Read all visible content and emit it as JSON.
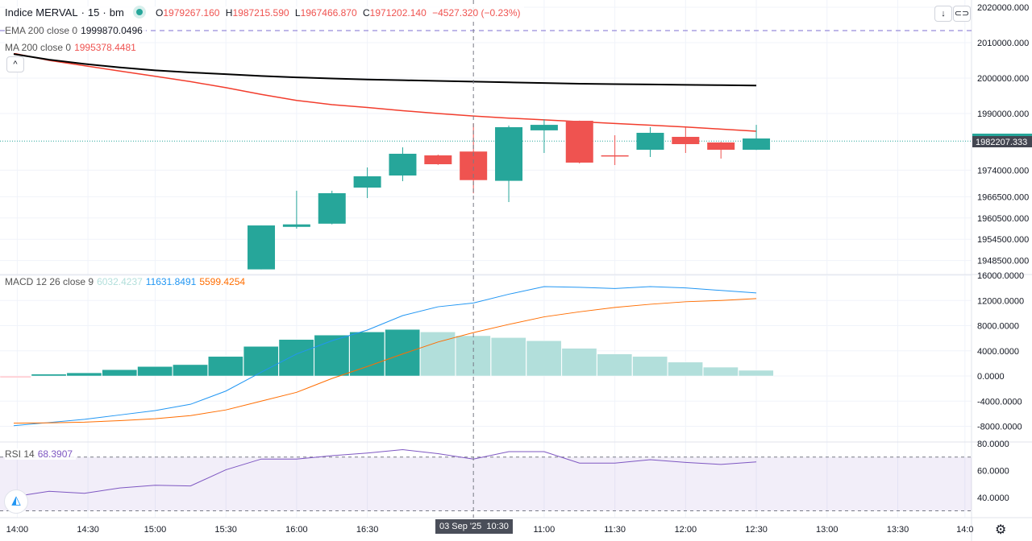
{
  "header": {
    "symbol": "Indice MERVAL",
    "interval": "15",
    "exchange": "bm",
    "open_label": "O",
    "open": "1979267.160",
    "high_label": "H",
    "high": "1987215.590",
    "low_label": "L",
    "low": "1967466.870",
    "close_label": "C",
    "close": "1971202.140",
    "change": "−4527.320 (−0.23%)"
  },
  "indicators": {
    "ema": {
      "label": "EMA 200 close 0",
      "value": "1999870.0496"
    },
    "ma": {
      "label": "MA 200 close 0",
      "value": "1995378.4481"
    },
    "macd": {
      "label": "MACD 12 26 close 9",
      "hist": "6032.4237",
      "macd": "11631.8491",
      "signal": "5599.4254"
    },
    "rsi": {
      "label": "RSI 14",
      "value": "68.3907"
    }
  },
  "buttons": {
    "collapse": "^",
    "scroll_down": "↓",
    "auto_scale": "⊂⊃"
  },
  "colors": {
    "up": "#26a69a",
    "down": "#ef5350",
    "ema": "#000000",
    "ma": "#f23d2d",
    "macd": "#2196f3",
    "signal": "#ff6d00",
    "hist_up_strong": "#26a69a",
    "hist_up_weak": "#b2dfdb",
    "rsi": "#7e57c2"
  },
  "crosshair": {
    "date_label": "03 Sep '25",
    "time_label": "10:30"
  },
  "last_price_label": "1982207.333",
  "chart_data": [
    {
      "type": "candlestick",
      "title": "Indice MERVAL · 15 · bm",
      "price_axis_ticks": [
        "2020000.000",
        "2010000.000",
        "2000000.000",
        "1990000.000",
        "1974000.000",
        "1966500.000",
        "1960500.000",
        "1954500.000",
        "1948500.000"
      ],
      "price_axis_values": [
        2020000,
        2010000,
        2000000,
        1990000,
        1974000,
        1966500,
        1960500,
        1954500,
        1948500
      ],
      "last_price": 1982207.333,
      "ema_ref_line": 2013400,
      "candles": [
        {
          "o": 1946000,
          "h": 1958400,
          "l": 1946000,
          "c": 1958400
        },
        {
          "o": 1958000,
          "h": 1968200,
          "l": 1957500,
          "c": 1958700
        },
        {
          "o": 1958900,
          "h": 1968200,
          "l": 1958700,
          "c": 1967500
        },
        {
          "o": 1969090,
          "h": 1974770,
          "l": 1966140,
          "c": 1972270
        },
        {
          "o": 1972500,
          "h": 1980450,
          "l": 1970900,
          "c": 1978640
        },
        {
          "o": 1978180,
          "h": 1978400,
          "l": 1975500,
          "c": 1975680
        },
        {
          "o": 1979267.16,
          "h": 1987215.59,
          "l": 1967466.87,
          "c": 1971202.14
        },
        {
          "o": 1971000,
          "h": 1986600,
          "l": 1965000,
          "c": 1986140
        },
        {
          "o": 1985250,
          "h": 1988400,
          "l": 1978860,
          "c": 1986800
        },
        {
          "o": 1987950,
          "h": 1988000,
          "l": 1975900,
          "c": 1976140
        },
        {
          "o": 1978200,
          "h": 1983860,
          "l": 1975450,
          "c": 1977950
        },
        {
          "o": 1979770,
          "h": 1986140,
          "l": 1977730,
          "c": 1984550
        },
        {
          "o": 1983410,
          "h": 1986140,
          "l": 1978860,
          "c": 1981360
        },
        {
          "o": 1981820,
          "h": 1982000,
          "l": 1977270,
          "c": 1979770
        },
        {
          "o": 1979770,
          "h": 1986800,
          "l": 1979700,
          "c": 1982950
        }
      ],
      "ma": [
        2007000,
        2005000,
        2003500,
        2002000,
        2000500,
        1999000,
        1997300,
        1995400,
        1993700,
        1992500,
        1991700,
        1990800,
        1990000,
        1989300,
        1988700,
        1988200,
        1987700,
        1987200,
        1986700,
        1986200,
        1985600,
        1985000
      ],
      "ema": [
        2006800,
        2005200,
        2004000,
        2003000,
        2002200,
        2001600,
        2001100,
        2000600,
        2000200,
        1999900,
        1999600,
        1999400,
        1999200,
        1999000,
        1998800,
        1998600,
        1998400,
        1998300,
        1998200,
        1998100,
        1998000,
        1997900
      ]
    },
    {
      "type": "bar+line",
      "title": "MACD 12 26 close 9",
      "axis_ticks": [
        "16000.0000",
        "12000.0000",
        "8000.0000",
        "4000.0000",
        "0.0000",
        "-4000.0000",
        "-8000.0000"
      ],
      "axis_values": [
        16000,
        12000,
        8000,
        4000,
        0,
        -4000,
        -8000
      ],
      "histogram": [
        -300,
        300,
        500,
        1000,
        1500,
        1800,
        3100,
        4700,
        5800,
        6500,
        7000,
        7400,
        7000,
        6400,
        6100,
        5600,
        4400,
        3500,
        3100,
        2200,
        1400,
        900
      ],
      "macd": [
        -7900,
        -7400,
        -6900,
        -6200,
        -5500,
        -4500,
        -2400,
        600,
        3500,
        5600,
        7300,
        9600,
        11000,
        11600,
        13000,
        14200,
        14100,
        13900,
        14200,
        14000,
        13600,
        13200
      ],
      "signal": [
        -7500,
        -7450,
        -7350,
        -7100,
        -6800,
        -6300,
        -5400,
        -4000,
        -2600,
        -400,
        1500,
        3500,
        5400,
        6900,
        8200,
        9400,
        10200,
        10900,
        11400,
        11800,
        12000,
        12300
      ]
    },
    {
      "type": "line",
      "title": "RSI 14",
      "axis_ticks": [
        "80.0000",
        "60.0000",
        "40.0000"
      ],
      "axis_values": [
        80,
        60,
        40
      ],
      "bands": [
        30,
        70
      ],
      "values": [
        40.5,
        44.5,
        43,
        47,
        49,
        48.5,
        60.5,
        68.5,
        68.5,
        71,
        73,
        75.5,
        72.5,
        68.5,
        74,
        74,
        65.5,
        65.5,
        68,
        66,
        64.5,
        66.4
      ]
    }
  ],
  "time_axis": [
    {
      "label": "14:00",
      "slot": 0.1
    },
    {
      "label": "14:30",
      "slot": 2.1
    },
    {
      "label": "15:00",
      "slot": 4.0
    },
    {
      "label": "15:30",
      "slot": 6.0
    },
    {
      "label": "16:00",
      "slot": 8.0
    },
    {
      "label": "16:30",
      "slot": 10.0
    },
    {
      "label": "11:00",
      "slot": 15.0
    },
    {
      "label": "11:30",
      "slot": 17.0
    },
    {
      "label": "12:00",
      "slot": 19.0
    },
    {
      "label": "12:30",
      "slot": 21.0
    },
    {
      "label": "13:00",
      "slot": 23.0
    },
    {
      "label": "13:30",
      "slot": 25.0
    },
    {
      "label": "14:0",
      "slot": 26.9
    }
  ],
  "crosshair_slot": 13
}
